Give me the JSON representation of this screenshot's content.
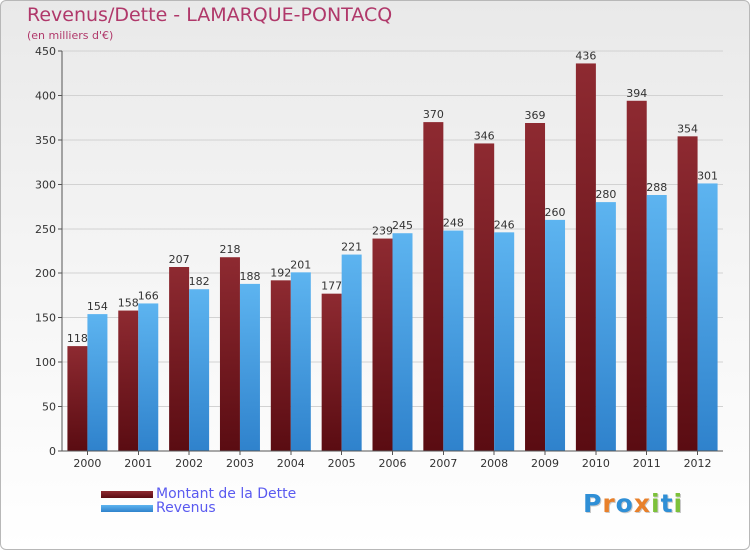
{
  "header": {
    "title": "Revenus/Dette - LAMARQUE-PONTACQ",
    "subtitle": "(en milliers d'€)"
  },
  "chart_data": {
    "type": "bar",
    "categories": [
      "2000",
      "2001",
      "2002",
      "2003",
      "2004",
      "2005",
      "2006",
      "2007",
      "2008",
      "2009",
      "2010",
      "2011",
      "2012"
    ],
    "series": [
      {
        "name": "Montant de la Dette",
        "color": "#7a1c24",
        "values": [
          118,
          158,
          207,
          218,
          192,
          177,
          239,
          370,
          346,
          369,
          436,
          394,
          354
        ]
      },
      {
        "name": "Revenus",
        "color": "#4aa3e8",
        "values": [
          154,
          166,
          182,
          188,
          201,
          221,
          245,
          248,
          246,
          260,
          280,
          288,
          301
        ]
      }
    ],
    "ylim": [
      0,
      450
    ],
    "yticks": [
      0,
      50,
      100,
      150,
      200,
      250,
      300,
      350,
      400,
      450
    ],
    "grid": true,
    "legend": "bottom-left"
  },
  "logo": {
    "letters": [
      "P",
      "r",
      "o",
      "x",
      "i",
      "t",
      "i"
    ],
    "colors": [
      "#2f8fd6",
      "#e8802a",
      "#2f8fd6",
      "#e8802a",
      "#7cc13a",
      "#2f8fd6",
      "#7cc13a"
    ]
  }
}
